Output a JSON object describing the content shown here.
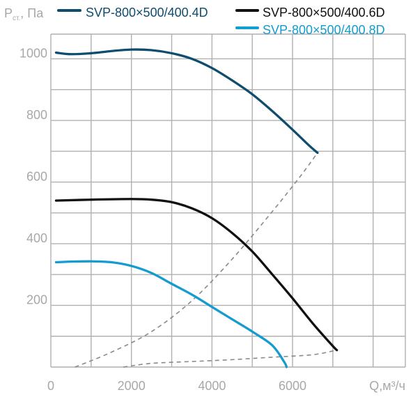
{
  "chart_data": {
    "type": "line",
    "title": "",
    "ylabel_main": "P",
    "ylabel_sub": "ст.",
    "ylabel_unit": ", Па",
    "xlabel": "Q,м³/ч",
    "xlim": [
      0,
      8800
    ],
    "ylim": [
      0,
      1080
    ],
    "x_ticks": [
      0,
      2000,
      4000,
      6000
    ],
    "x_tick_labels": [
      "0",
      "2000",
      "4000",
      "6000"
    ],
    "y_ticks": [
      200,
      400,
      600,
      800,
      1000
    ],
    "y_tick_labels": [
      "200",
      "400",
      "600",
      "800",
      "1000"
    ],
    "grid": true,
    "legend_position": "top",
    "series": [
      {
        "name": "SVP-800×500/400.4D",
        "color": "#0e4d6e",
        "points": [
          [
            130,
            1020
          ],
          [
            500,
            1015
          ],
          [
            1000,
            1018
          ],
          [
            1500,
            1025
          ],
          [
            2000,
            1030
          ],
          [
            2500,
            1028
          ],
          [
            3000,
            1018
          ],
          [
            3500,
            1000
          ],
          [
            4000,
            970
          ],
          [
            4500,
            930
          ],
          [
            5000,
            885
          ],
          [
            5500,
            830
          ],
          [
            6000,
            770
          ],
          [
            6400,
            720
          ],
          [
            6620,
            695
          ]
        ]
      },
      {
        "name": "SVP-800×500/400.6D",
        "color": "#111111",
        "points": [
          [
            130,
            540
          ],
          [
            1000,
            543
          ],
          [
            2000,
            545
          ],
          [
            2500,
            543
          ],
          [
            3000,
            535
          ],
          [
            3500,
            515
          ],
          [
            4000,
            483
          ],
          [
            4500,
            435
          ],
          [
            5000,
            375
          ],
          [
            5500,
            300
          ],
          [
            6000,
            223
          ],
          [
            6500,
            142
          ],
          [
            7000,
            68
          ],
          [
            7100,
            55
          ]
        ]
      },
      {
        "name": "SVP-800×500/400.8D",
        "color": "#139ccf",
        "points": [
          [
            130,
            340
          ],
          [
            500,
            342
          ],
          [
            1000,
            343
          ],
          [
            1500,
            340
          ],
          [
            2000,
            328
          ],
          [
            2500,
            305
          ],
          [
            3000,
            270
          ],
          [
            3500,
            235
          ],
          [
            4000,
            195
          ],
          [
            4500,
            155
          ],
          [
            5000,
            115
          ],
          [
            5500,
            70
          ],
          [
            5800,
            15
          ],
          [
            5850,
            0
          ]
        ]
      }
    ],
    "guide_curves": [
      {
        "style": "dashed",
        "color": "#8a8a8a",
        "points": [
          [
            600,
            0
          ],
          [
            1500,
            48
          ],
          [
            2500,
            115
          ],
          [
            3500,
            215
          ],
          [
            4500,
            350
          ],
          [
            5500,
            505
          ],
          [
            6200,
            620
          ],
          [
            6620,
            695
          ]
        ]
      },
      {
        "style": "dashed",
        "color": "#8a8a8a",
        "points": [
          [
            1800,
            0
          ],
          [
            2500,
            12
          ],
          [
            3500,
            18
          ],
          [
            4500,
            24
          ],
          [
            5500,
            32
          ],
          [
            6500,
            40
          ],
          [
            7100,
            55
          ]
        ]
      }
    ]
  }
}
